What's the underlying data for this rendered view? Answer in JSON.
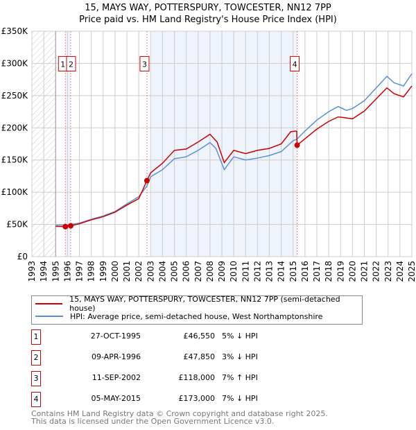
{
  "title_line1": "15, MAYS WAY, POTTERSPURY, TOWCESTER, NN12 7PP",
  "title_line2": "Price paid vs. HM Land Registry's House Price Index (HPI)",
  "colors": {
    "property": "#cc0000",
    "hpi": "#5b8fd6",
    "shade": "#eef3fc"
  },
  "chart_data": {
    "type": "line",
    "title": "15, MAYS WAY, POTTERSPURY, TOWCESTER, NN12 7PP — Price paid vs. HM Land Registry's House Price Index (HPI)",
    "xlim": [
      1993,
      2025
    ],
    "ylim": [
      0,
      350000
    ],
    "x_ticks": [
      "1993",
      "1994",
      "1995",
      "1996",
      "1997",
      "1998",
      "1999",
      "2000",
      "2001",
      "2002",
      "2003",
      "2004",
      "2005",
      "2006",
      "2007",
      "2008",
      "2009",
      "2010",
      "2011",
      "2012",
      "2013",
      "2014",
      "2015",
      "2016",
      "2017",
      "2018",
      "2019",
      "2020",
      "2021",
      "2022",
      "2023",
      "2024",
      "2025"
    ],
    "y_ticks": [
      {
        "v": 0,
        "label": "£0"
      },
      {
        "v": 50000,
        "label": "£50K"
      },
      {
        "v": 100000,
        "label": "£100K"
      },
      {
        "v": 150000,
        "label": "£150K"
      },
      {
        "v": 200000,
        "label": "£200K"
      },
      {
        "v": 250000,
        "label": "£250K"
      },
      {
        "v": 300000,
        "label": "£300K"
      },
      {
        "v": 350000,
        "label": "£350K"
      }
    ],
    "grid": true,
    "no_data_before": 1995,
    "shaded_ranges": [
      [
        1995.82,
        1996.27
      ],
      [
        2003.0,
        2015.34
      ]
    ],
    "series": [
      {
        "name": "15, MAYS WAY, POTTERSPURY, TOWCESTER, NN12 7PP (semi-detached house)",
        "x": [
          1995,
          1995.82,
          1996.27,
          1997,
          1998,
          1999,
          2000,
          2001,
          2002,
          2002.69,
          2003,
          2004,
          2005,
          2006,
          2007,
          2008,
          2008.6,
          2009.2,
          2010,
          2011,
          2012,
          2013,
          2014,
          2014.8,
          2015.3,
          2015.34,
          2016,
          2017,
          2018,
          2018.8,
          2020,
          2021,
          2022,
          2022.9,
          2023.5,
          2024.3,
          2025
        ],
        "y": [
          47000,
          46550,
          47850,
          51000,
          57000,
          62000,
          69000,
          80000,
          90000,
          118000,
          130000,
          145000,
          165000,
          167000,
          178000,
          190000,
          178000,
          146000,
          165000,
          160000,
          165000,
          168000,
          175000,
          194000,
          195000,
          173000,
          183000,
          198000,
          210000,
          217000,
          214000,
          226000,
          245000,
          262000,
          253000,
          248000,
          265000
        ]
      },
      {
        "name": "HPI: Average price, semi-detached house, West Northamptonshire",
        "x": [
          1995,
          1996,
          1997,
          1998,
          1999,
          2000,
          2001,
          2002,
          2002.7,
          2003,
          2004,
          2005,
          2006,
          2007,
          2008,
          2008.5,
          2009.2,
          2010,
          2011,
          2012,
          2013,
          2014,
          2015,
          2015.3,
          2016,
          2017,
          2018,
          2018.8,
          2019.5,
          2020,
          2021,
          2022,
          2022.9,
          2023.5,
          2024.3,
          2025
        ],
        "y": [
          49000,
          49000,
          52000,
          58000,
          63000,
          70000,
          82000,
          93000,
          110000,
          124000,
          135000,
          152000,
          155000,
          165000,
          177000,
          168000,
          135000,
          155000,
          150000,
          153000,
          157000,
          163000,
          180000,
          182000,
          195000,
          212000,
          225000,
          233000,
          227000,
          230000,
          242000,
          262000,
          280000,
          270000,
          265000,
          284000
        ]
      }
    ],
    "sales": [
      {
        "id": "1",
        "x": 1995.82,
        "y": 46550
      },
      {
        "id": "2",
        "x": 1996.27,
        "y": 47850
      },
      {
        "id": "3",
        "x": 2002.69,
        "y": 118000
      },
      {
        "id": "4",
        "x": 2015.34,
        "y": 173000
      }
    ],
    "marker_label_value": 300000
  },
  "legend": {
    "property": "15, MAYS WAY, POTTERSPURY, TOWCESTER, NN12 7PP (semi-detached house)",
    "hpi": "HPI: Average price, semi-detached house, West Northamptonshire"
  },
  "transactions": [
    {
      "id": "1",
      "date": "27-OCT-1995",
      "price": "£46,550",
      "hpi": "5% ↓ HPI"
    },
    {
      "id": "2",
      "date": "09-APR-1996",
      "price": "£47,850",
      "hpi": "3% ↓ HPI"
    },
    {
      "id": "3",
      "date": "11-SEP-2002",
      "price": "£118,000",
      "hpi": "7% ↑ HPI"
    },
    {
      "id": "4",
      "date": "05-MAY-2015",
      "price": "£173,000",
      "hpi": "7% ↓ HPI"
    }
  ],
  "footer_line1": "Contains HM Land Registry data © Crown copyright and database right 2025.",
  "footer_line2": "This data is licensed under the Open Government Licence v3.0."
}
